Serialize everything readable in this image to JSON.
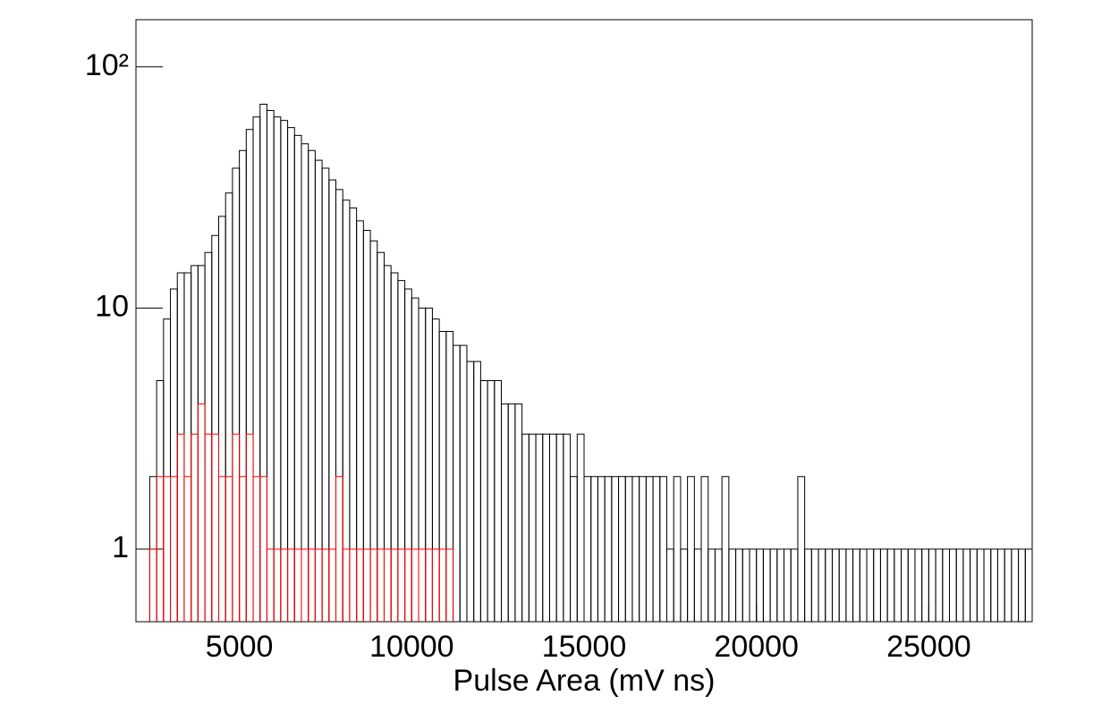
{
  "chart_data": {
    "type": "histogram",
    "x_label": "Pulse Area (mV ns)",
    "xlim": [
      2000,
      28000
    ],
    "xticks": [
      5000,
      10000,
      15000,
      20000,
      25000
    ],
    "ylim": [
      0.5,
      157
    ],
    "yticks": [
      1,
      10,
      {
        "value": 100,
        "label": "10²"
      }
    ],
    "log_y": true,
    "series": [
      {
        "color": "#000000",
        "bins": [
          2400,
          2600,
          2800,
          3000,
          3200,
          3400,
          3600,
          3800,
          4000,
          4200,
          4400,
          4600,
          4800,
          5000,
          5200,
          5400,
          5600,
          5800,
          6000,
          6200,
          6400,
          6600,
          6800,
          7000,
          7200,
          7400,
          7600,
          7800,
          8000,
          8200,
          8400,
          8600,
          8800,
          9000,
          9200,
          9400,
          9600,
          9800,
          10000,
          10200,
          10400,
          10600,
          10800,
          11000,
          11200,
          11400,
          11600,
          11800,
          12000,
          12200,
          12400,
          12600,
          12800,
          13000,
          13200,
          13400,
          13600,
          13800,
          14000,
          14200,
          14400,
          14600,
          14800,
          15000,
          15200,
          15400,
          15600,
          15800,
          16000,
          16200,
          16400,
          16600,
          16800,
          17000,
          17200,
          17400,
          17600,
          17800,
          18000,
          18200,
          18400,
          18600,
          18800,
          19000,
          19200,
          19400,
          19600,
          19800,
          20000,
          20200,
          20400,
          20600,
          20800,
          21000,
          21200,
          21400,
          21600,
          21800,
          22000,
          22200,
          22400,
          22600,
          22800,
          23000,
          23200,
          23400,
          23600,
          23800,
          24000,
          24200,
          24400,
          24600,
          24800,
          25000,
          25200,
          25400,
          25600,
          25800,
          26000,
          26200,
          26400,
          26600,
          26800,
          27000,
          27200,
          27400,
          27600,
          27800,
          28000
        ],
        "values": [
          2,
          5,
          9,
          12,
          14,
          14,
          15,
          15,
          17,
          20,
          24,
          30,
          38,
          45,
          55,
          62,
          70,
          66,
          62,
          60,
          56,
          52,
          48,
          45,
          41,
          38,
          34,
          31,
          28,
          26,
          23,
          21,
          19,
          17,
          15,
          14,
          13,
          12,
          11,
          10,
          10,
          9,
          8,
          8,
          7,
          7,
          6,
          6,
          5,
          5,
          5,
          4,
          4,
          4,
          3,
          3,
          3,
          3,
          3,
          3,
          3,
          2,
          3,
          2,
          2,
          2,
          2,
          2,
          2,
          2,
          2,
          2,
          2,
          2,
          2,
          1,
          2,
          1,
          2,
          1,
          2,
          1,
          1,
          2,
          1,
          1,
          1,
          1,
          1,
          1,
          1,
          1,
          1,
          1,
          2,
          1,
          1,
          1,
          1,
          1,
          1,
          1,
          1,
          1,
          1,
          1,
          1,
          1,
          1,
          1,
          1,
          1,
          1,
          1,
          1,
          1,
          1,
          1,
          1,
          1,
          1,
          1,
          1,
          1,
          1,
          1,
          1,
          1
        ]
      },
      {
        "color": "#ff0000",
        "bins": [
          2400,
          2600,
          2800,
          3000,
          3200,
          3400,
          3600,
          3800,
          4000,
          4200,
          4400,
          4600,
          4800,
          5000,
          5200,
          5400,
          5600,
          5800,
          6000,
          6200,
          6400,
          6600,
          6800,
          7000,
          7200,
          7400,
          7600,
          7800,
          8000,
          8200,
          8400,
          8600,
          8800,
          9000,
          9200,
          9400,
          9600,
          9800,
          10000,
          10200,
          10400,
          10600,
          10800,
          11000,
          11200
        ],
        "values": [
          1,
          2,
          2,
          2,
          3,
          2,
          3,
          4,
          3,
          3,
          2,
          2,
          3,
          2,
          3,
          2,
          2,
          1,
          1,
          1,
          1,
          1,
          1,
          1,
          1,
          1,
          1,
          2,
          1,
          1,
          1,
          1,
          1,
          1,
          1,
          1,
          1,
          1,
          1,
          1,
          1,
          1,
          1,
          1
        ]
      }
    ]
  }
}
